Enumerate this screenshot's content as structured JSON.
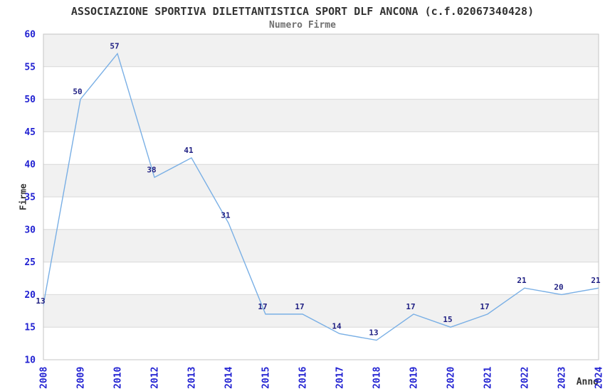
{
  "header": {
    "title": "ASSOCIAZIONE SPORTIVA DILETTANTISTICA SPORT DLF ANCONA (c.f.02067340428)",
    "subtitle": "Numero Firme"
  },
  "chart_data": {
    "type": "line",
    "title": "ASSOCIAZIONE SPORTIVA DILETTANTISTICA SPORT DLF ANCONA (c.f.02067340428)",
    "subtitle": "Numero Firme",
    "xlabel": "Anno",
    "ylabel": "Firme",
    "categories": [
      "2008",
      "2009",
      "2010",
      "2012",
      "2013",
      "2014",
      "2015",
      "2016",
      "2017",
      "2018",
      "2019",
      "2020",
      "2021",
      "2022",
      "2023",
      "2024"
    ],
    "values": [
      13,
      50,
      57,
      38,
      41,
      31,
      17,
      17,
      14,
      13,
      17,
      15,
      17,
      21,
      20,
      21
    ],
    "ylim": [
      10,
      60
    ],
    "ytick_step": 5,
    "grid": "horizontal-bands-alternating",
    "legend": "none",
    "point_labels_visible": true,
    "colors": {
      "line": "#79afe5",
      "point_label": "#1e1e82",
      "tick_label": "#2222d2",
      "band": "#f1f1f1",
      "gridline": "#d8d8d8",
      "border": "#c4c4c4",
      "title": "#333333",
      "subtitle": "#707070",
      "axis_label": "#333333",
      "background": "#ffffff"
    }
  }
}
